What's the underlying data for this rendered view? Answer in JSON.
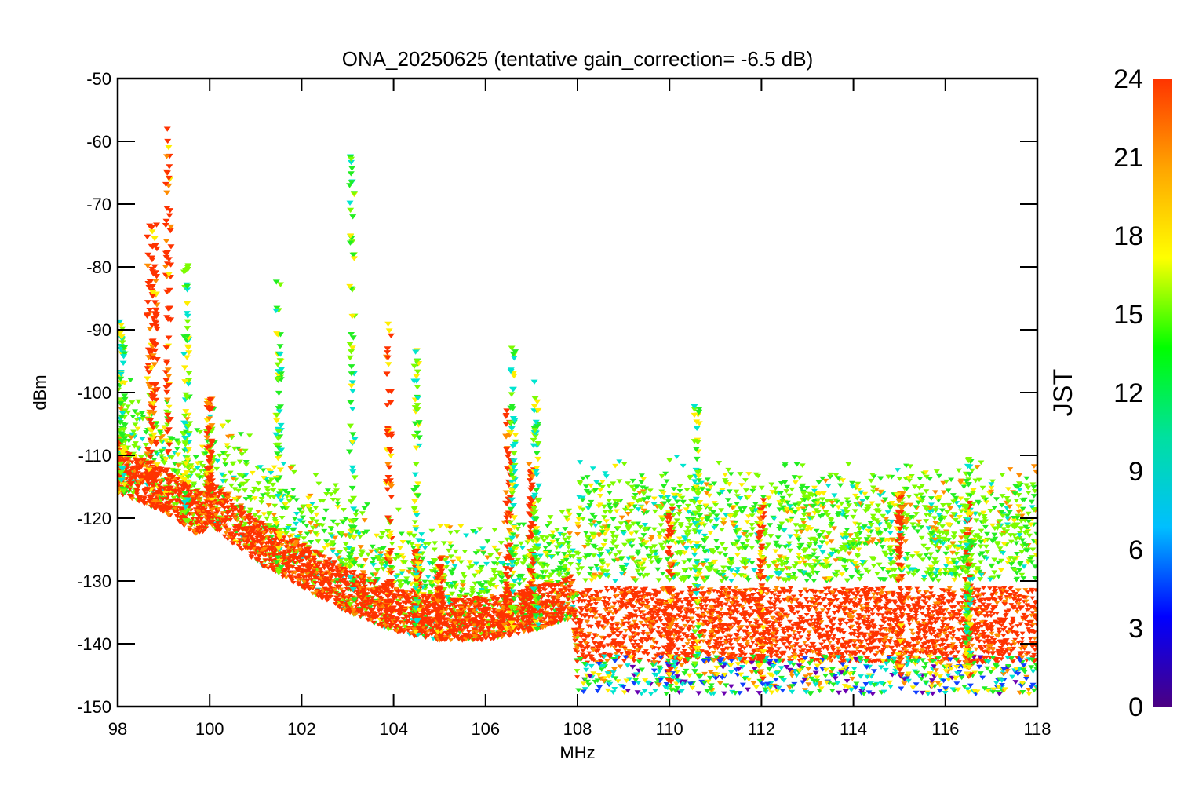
{
  "chart_data": {
    "type": "scatter",
    "title": "ONA_20250625 (tentative gain_correction= -6.5 dB)",
    "xlabel": "MHz",
    "ylabel": "dBm",
    "xlim": [
      98,
      118
    ],
    "ylim": [
      -150,
      -50
    ],
    "x_ticks": [
      "98",
      "100",
      "102",
      "104",
      "106",
      "108",
      "110",
      "112",
      "114",
      "116",
      "118"
    ],
    "y_ticks": [
      "-50",
      "-60",
      "-70",
      "-80",
      "-90",
      "-100",
      "-110",
      "-120",
      "-130",
      "-140",
      "-150"
    ],
    "grid": false,
    "colorbar": {
      "label": "JST",
      "range": [
        0,
        24
      ],
      "ticks": [
        "24",
        "21",
        "18",
        "15",
        "12",
        "9",
        "6",
        "3",
        "0"
      ],
      "colormap": "rainbow",
      "colors": [
        "#4b0082",
        "#0000ff",
        "#00bfff",
        "#00e0a0",
        "#00ff00",
        "#ffff00",
        "#ffa500",
        "#ff3300"
      ]
    },
    "noise_floor": [
      {
        "x": 98.0,
        "y": -116
      },
      {
        "x": 99.0,
        "y": -119
      },
      {
        "x": 99.8,
        "y": -123
      },
      {
        "x": 100.0,
        "y": -121
      },
      {
        "x": 101.0,
        "y": -127
      },
      {
        "x": 102.0,
        "y": -131
      },
      {
        "x": 103.0,
        "y": -135
      },
      {
        "x": 104.0,
        "y": -138
      },
      {
        "x": 105.0,
        "y": -139.5
      },
      {
        "x": 106.0,
        "y": -139.5
      },
      {
        "x": 107.0,
        "y": -138
      },
      {
        "x": 107.9,
        "y": -136
      },
      {
        "x": 108.0,
        "y": -146
      },
      {
        "x": 118.0,
        "y": -146
      }
    ],
    "series": [
      {
        "values": [
          {
            "x": 98.0,
            "y": -107
          },
          {
            "x": 98.7,
            "y": -73
          },
          {
            "x": 98.8,
            "y": -73
          },
          {
            "x": 99.1,
            "y": -58
          },
          {
            "x": 100.0,
            "y": -101
          },
          {
            "x": 103.9,
            "y": -89
          },
          {
            "x": 104.5,
            "y": -125
          },
          {
            "x": 105.0,
            "y": -126
          },
          {
            "x": 106.5,
            "y": -102
          },
          {
            "x": 107.0,
            "y": -111
          },
          {
            "x": 110.0,
            "y": -118
          },
          {
            "x": 112.0,
            "y": -117
          },
          {
            "x": 115.0,
            "y": -116
          },
          {
            "x": 116.5,
            "y": -117
          }
        ]
      },
      {
        "values": [
          {
            "x": 98.1,
            "y": -88
          },
          {
            "x": 99.5,
            "y": -79
          },
          {
            "x": 101.5,
            "y": -82
          },
          {
            "x": 103.1,
            "y": -61
          },
          {
            "x": 104.5,
            "y": -93
          },
          {
            "x": 106.6,
            "y": -92
          },
          {
            "x": 107.1,
            "y": -98
          },
          {
            "x": 110.6,
            "y": -101
          },
          {
            "x": 116.5,
            "y": -110
          }
        ]
      }
    ]
  }
}
